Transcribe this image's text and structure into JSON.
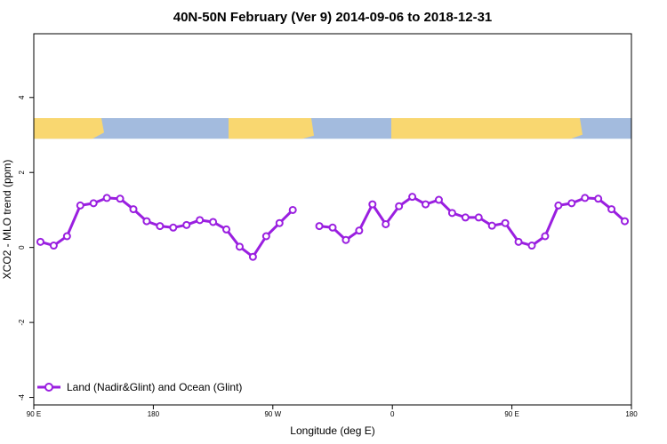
{
  "chart_data": {
    "type": "line",
    "title": "40N-50N February (Ver 9)   2014-09-06 to 2018-12-31",
    "xlabel": "Longitude (deg E)",
    "ylabel": "XCO2 - MLO trend (ppm)",
    "xlim": [
      90,
      540
    ],
    "ylim": [
      -4.2,
      5.7
    ],
    "xticks": [
      {
        "value": 90,
        "label": "90 E"
      },
      {
        "value": 180,
        "label": "180"
      },
      {
        "value": 270,
        "label": "90 W"
      },
      {
        "value": 360,
        "label": "0"
      },
      {
        "value": 450,
        "label": "90 E"
      },
      {
        "value": 540,
        "label": "180"
      }
    ],
    "yticks": [
      {
        "value": 4,
        "label": "4"
      },
      {
        "value": 2,
        "label": "2"
      },
      {
        "value": 0,
        "label": "0"
      },
      {
        "value": -2,
        "label": "-2"
      },
      {
        "value": -4,
        "label": "-4"
      }
    ],
    "grid": false,
    "legend": {
      "position": "bottom-left",
      "entries": [
        "Land (Nadir&Glint) and Ocean (Glint)"
      ]
    },
    "colors": {
      "series": "#9a1fe0",
      "land": "#f9d770",
      "ocean": "#a3bbde"
    },
    "map_strip": {
      "y_top": 3.45,
      "y_bottom": 2.9
    },
    "series": [
      {
        "name": "Land (Nadir&Glint) and Ocean (Glint)",
        "x": [
          95,
          105,
          115,
          125,
          135,
          145,
          155,
          165,
          175,
          185,
          195,
          205,
          215,
          225,
          235,
          245,
          255,
          265,
          275,
          285,
          295,
          305,
          315,
          325,
          335,
          345,
          355,
          365,
          375,
          385,
          395,
          405,
          415,
          425,
          435,
          445,
          455,
          465,
          475,
          485,
          495,
          505,
          515,
          525,
          535
        ],
        "y": [
          0.15,
          0.05,
          0.3,
          1.12,
          1.18,
          1.32,
          1.3,
          1.02,
          0.7,
          0.57,
          0.53,
          0.6,
          0.73,
          0.68,
          0.48,
          0.02,
          -0.25,
          0.3,
          0.65,
          1.0,
          null,
          0.57,
          0.53,
          0.2,
          0.45,
          1.15,
          0.62,
          1.1,
          1.35,
          1.15,
          1.27,
          0.92,
          0.8,
          0.8,
          0.58,
          0.65,
          0.15,
          0.05,
          0.3,
          1.12,
          1.18,
          1.32,
          1.3,
          1.02,
          0.7
        ]
      }
    ]
  }
}
